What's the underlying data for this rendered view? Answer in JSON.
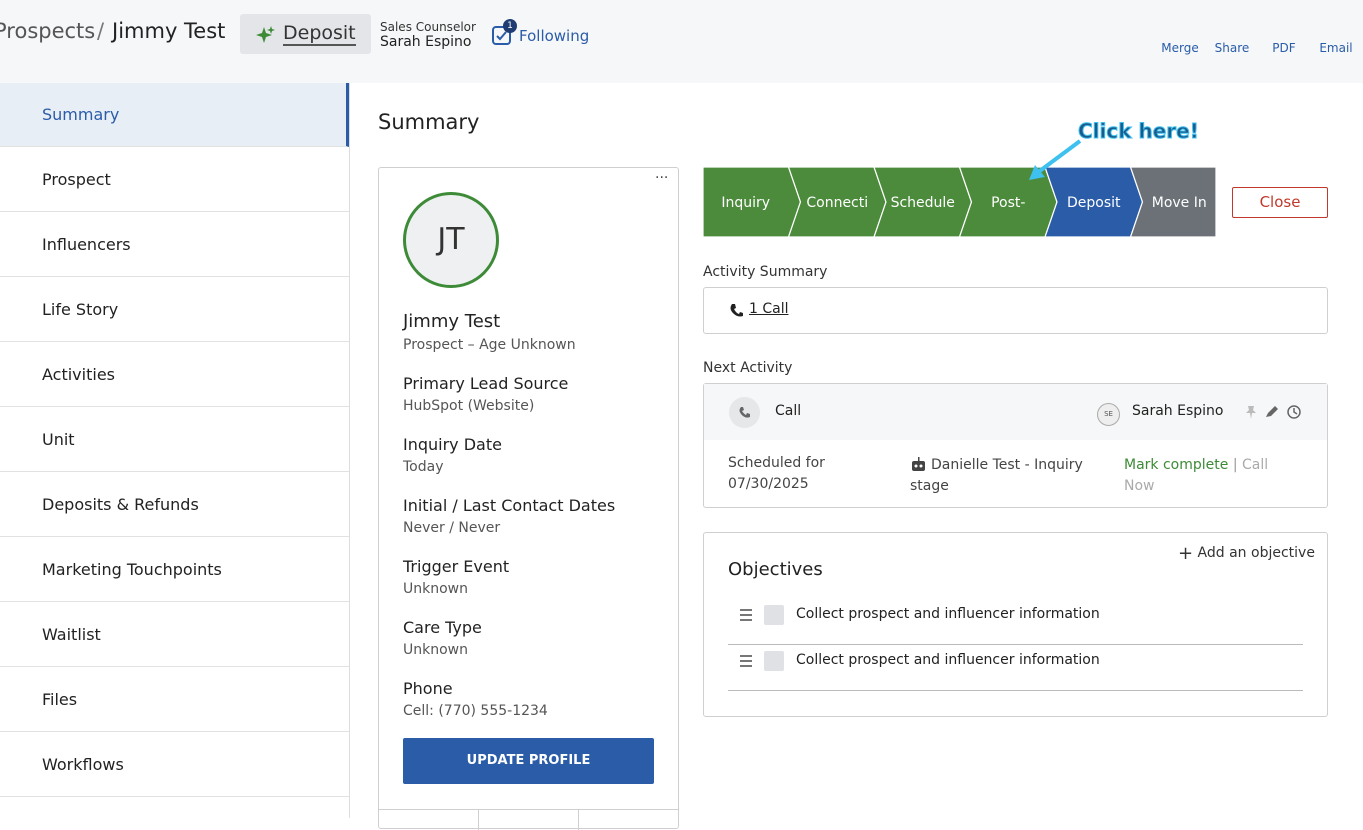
{
  "header": {
    "breadcrumb_parent": "Prospects",
    "separator": "/",
    "breadcrumb_current": "Jimmy Test",
    "stage_button": "Deposit",
    "counselor_label": "Sales Counselor",
    "counselor_name": "Sarah Espino",
    "following_count": 1,
    "following_label": "Following",
    "actions": [
      "Merge",
      "Share",
      "PDF",
      "Email"
    ]
  },
  "sidebar": {
    "items": [
      "Summary",
      "Prospect",
      "Influencers",
      "Life Story",
      "Activities",
      "Unit",
      "Deposits & Refunds",
      "Marketing Touchpoints",
      "Waitlist",
      "Files",
      "Workflows"
    ],
    "active": 0
  },
  "summary": {
    "title": "Summary",
    "profile": {
      "initials": "JT",
      "name": "Jimmy Test",
      "subtitle": "Prospect – Age Unknown",
      "fields": [
        {
          "label": "Primary Lead Source",
          "value": "HubSpot (Website)"
        },
        {
          "label": "Inquiry Date",
          "value": "Today"
        },
        {
          "label": "Initial / Last Contact Dates",
          "value": "Never / Never"
        },
        {
          "label": "Trigger Event",
          "value": "Unknown"
        },
        {
          "label": "Care Type",
          "value": "Unknown"
        },
        {
          "label": "Phone",
          "value": "Cell: (770) 555-1234"
        }
      ],
      "button": "UPDATE PROFILE"
    },
    "pipeline": {
      "stages": [
        {
          "label": "Inquiry",
          "color": "#4b8b3b"
        },
        {
          "label": "Connecti",
          "color": "#4b8b3b"
        },
        {
          "label": "Schedule",
          "color": "#4b8b3b"
        },
        {
          "label": "Post-",
          "color": "#4b8b3b"
        },
        {
          "label": "Deposit",
          "color": "#2a5ca8"
        },
        {
          "label": "Move In",
          "color": "#6b7177"
        }
      ],
      "close": "Close"
    },
    "callout": "Click here!",
    "activity_summary": {
      "label": "Activity Summary",
      "link": "1 Call"
    },
    "next_activity": {
      "label": "Next Activity",
      "type": "Call",
      "assignee_initials": "SE",
      "assignee": "Sarah Espino",
      "scheduled_label": "Scheduled for",
      "scheduled_date": "07/30/2025",
      "workflow": "Danielle Test - Inquiry stage",
      "mark_complete": "Mark complete",
      "separator": "|",
      "call_now": "Call Now"
    },
    "objectives": {
      "title": "Objectives",
      "add": "Add an objective",
      "items": [
        "Collect prospect and influencer information",
        "Collect prospect and influencer information"
      ]
    }
  }
}
